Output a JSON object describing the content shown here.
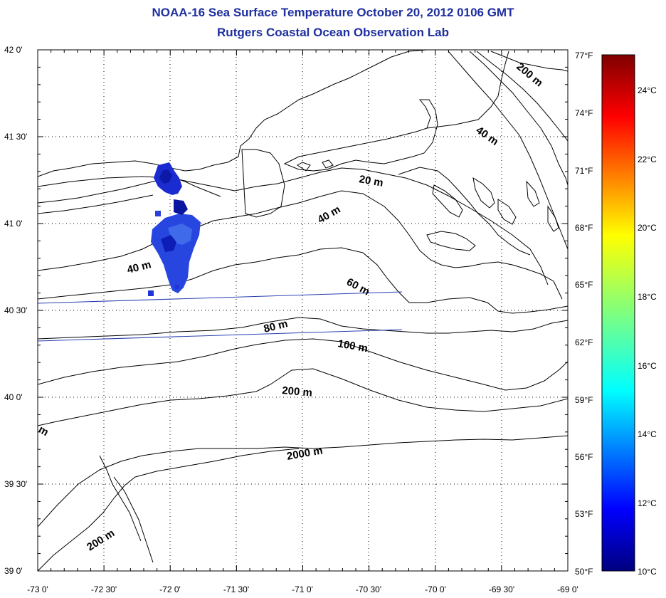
{
  "title": "NOAA-16 Sea Surface Temperature October 20, 2012 0106 GMT",
  "subtitle": "Rutgers Coastal Ocean Observation Lab",
  "map": {
    "lon_labels": [
      "-73 0'",
      "-72 30'",
      "-72 0'",
      "-71 30'",
      "-71 0'",
      "-70 30'",
      "-70 0'",
      "-69 30'",
      "-69 0'"
    ],
    "lat_labels": [
      "42 0'",
      "41 30'",
      "41 0'",
      "40 30'",
      "40 0'",
      "39 30'",
      "39 0'"
    ],
    "lon_range": [
      -73.0,
      -69.0
    ],
    "lat_range": [
      39.0,
      42.0
    ],
    "grid": "dotted",
    "contour_labels": [
      "200 m",
      "40 m",
      "20 m",
      "40 m",
      "40 m",
      "60 m",
      "80 m",
      "100 m",
      "200 m",
      "2000 m",
      "200 m",
      "m"
    ],
    "colors": {
      "title": "#1f2f9e",
      "sst_patch": "#1e33d8",
      "transect": "#2a3fb0"
    }
  },
  "colorbar": {
    "f_labels": [
      "77°F",
      "74°F",
      "71°F",
      "68°F",
      "65°F",
      "62°F",
      "59°F",
      "56°F",
      "53°F",
      "50°F"
    ],
    "c_labels": [
      "24°C",
      "22°C",
      "20°C",
      "18°C",
      "16°C",
      "14°C",
      "12°C",
      "10°C"
    ],
    "colormap": "jet",
    "range_f": [
      50,
      77
    ]
  }
}
